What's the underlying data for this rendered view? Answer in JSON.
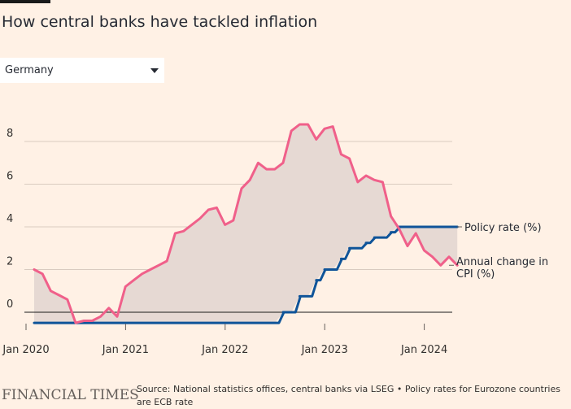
{
  "title": "How central banks have tackled inflation",
  "dropdown": {
    "selected": "Germany"
  },
  "footer": {
    "logo": "FINANCIAL TIMES",
    "source": "Source: National statistics offices, central banks via LSEG • Policy rates for Eurozone countries are ECB rate"
  },
  "colors": {
    "background": "#fff1e5",
    "cpi_line": "#f0608a",
    "policy_line": "#0f5499",
    "fill_between": "#e6d9d3"
  },
  "chart_data": {
    "type": "line",
    "x_unit": "month",
    "x_ticks": [
      "Jan 2020",
      "Jan 2021",
      "Jan 2022",
      "Jan 2023",
      "Jan 2024"
    ],
    "y_ticks": [
      "0",
      "2",
      "4",
      "6",
      "8"
    ],
    "ylim": [
      -1,
      9
    ],
    "xlim": [
      "2020-01",
      "2024-05"
    ],
    "grid": true,
    "fill_between_series": true,
    "series": [
      {
        "name": "Annual change in CPI (%)",
        "x": [
          "2020-01",
          "2020-02",
          "2020-03",
          "2020-04",
          "2020-05",
          "2020-06",
          "2020-07",
          "2020-08",
          "2020-09",
          "2020-10",
          "2020-11",
          "2020-12",
          "2021-01",
          "2021-02",
          "2021-03",
          "2021-04",
          "2021-05",
          "2021-06",
          "2021-07",
          "2021-08",
          "2021-09",
          "2021-10",
          "2021-11",
          "2021-12",
          "2022-01",
          "2022-02",
          "2022-03",
          "2022-04",
          "2022-05",
          "2022-06",
          "2022-07",
          "2022-08",
          "2022-09",
          "2022-10",
          "2022-11",
          "2022-12",
          "2023-01",
          "2023-02",
          "2023-03",
          "2023-04",
          "2023-05",
          "2023-06",
          "2023-07",
          "2023-08",
          "2023-09",
          "2023-10",
          "2023-11",
          "2023-12",
          "2024-01",
          "2024-02",
          "2024-03",
          "2024-04"
        ],
        "values": [
          2.0,
          1.8,
          1.0,
          0.8,
          0.6,
          -0.5,
          -0.4,
          -0.4,
          -0.2,
          0.2,
          -0.2,
          1.2,
          1.5,
          1.8,
          2.0,
          2.2,
          2.4,
          3.7,
          3.8,
          4.1,
          4.4,
          4.8,
          4.9,
          4.1,
          4.3,
          5.8,
          6.2,
          7.0,
          6.7,
          6.7,
          7.0,
          8.5,
          8.8,
          8.8,
          8.1,
          8.6,
          8.7,
          7.4,
          7.2,
          6.1,
          6.4,
          6.2,
          6.1,
          4.5,
          3.9,
          3.1,
          3.7,
          2.9,
          2.6,
          2.2,
          2.6,
          2.2
        ],
        "color": "#f0608a"
      },
      {
        "name": "Policy rate (%)",
        "x": [
          "2020-01",
          "2020-02",
          "2020-03",
          "2020-04",
          "2020-05",
          "2020-06",
          "2020-07",
          "2020-08",
          "2020-09",
          "2020-10",
          "2020-11",
          "2020-12",
          "2021-01",
          "2021-02",
          "2021-03",
          "2021-04",
          "2021-05",
          "2021-06",
          "2021-07",
          "2021-08",
          "2021-09",
          "2021-10",
          "2021-11",
          "2021-12",
          "2022-01",
          "2022-02",
          "2022-03",
          "2022-04",
          "2022-05",
          "2022-06",
          "2022-07",
          "2022-08",
          "2022-09",
          "2022-10",
          "2022-11",
          "2022-12",
          "2023-01",
          "2023-02",
          "2023-03",
          "2023-04",
          "2023-05",
          "2023-06",
          "2023-07",
          "2023-08",
          "2023-09",
          "2023-10",
          "2023-11",
          "2023-12",
          "2024-01",
          "2024-02",
          "2024-03",
          "2024-04"
        ],
        "values": [
          -0.5,
          -0.5,
          -0.5,
          -0.5,
          -0.5,
          -0.5,
          -0.5,
          -0.5,
          -0.5,
          -0.5,
          -0.5,
          -0.5,
          -0.5,
          -0.5,
          -0.5,
          -0.5,
          -0.5,
          -0.5,
          -0.5,
          -0.5,
          -0.5,
          -0.5,
          -0.5,
          -0.5,
          -0.5,
          -0.5,
          -0.5,
          -0.5,
          -0.5,
          -0.5,
          0.0,
          0.0,
          0.75,
          0.75,
          1.5,
          2.0,
          2.0,
          2.5,
          3.0,
          3.0,
          3.25,
          3.5,
          3.5,
          3.75,
          4.0,
          4.0,
          4.0,
          4.0,
          4.0,
          4.0,
          4.0,
          4.0
        ],
        "color": "#0f5499"
      }
    ],
    "labels": {
      "policy": "Policy rate (%)",
      "cpi_line1": "Annual change in",
      "cpi_line2": "CPI (%)"
    }
  }
}
